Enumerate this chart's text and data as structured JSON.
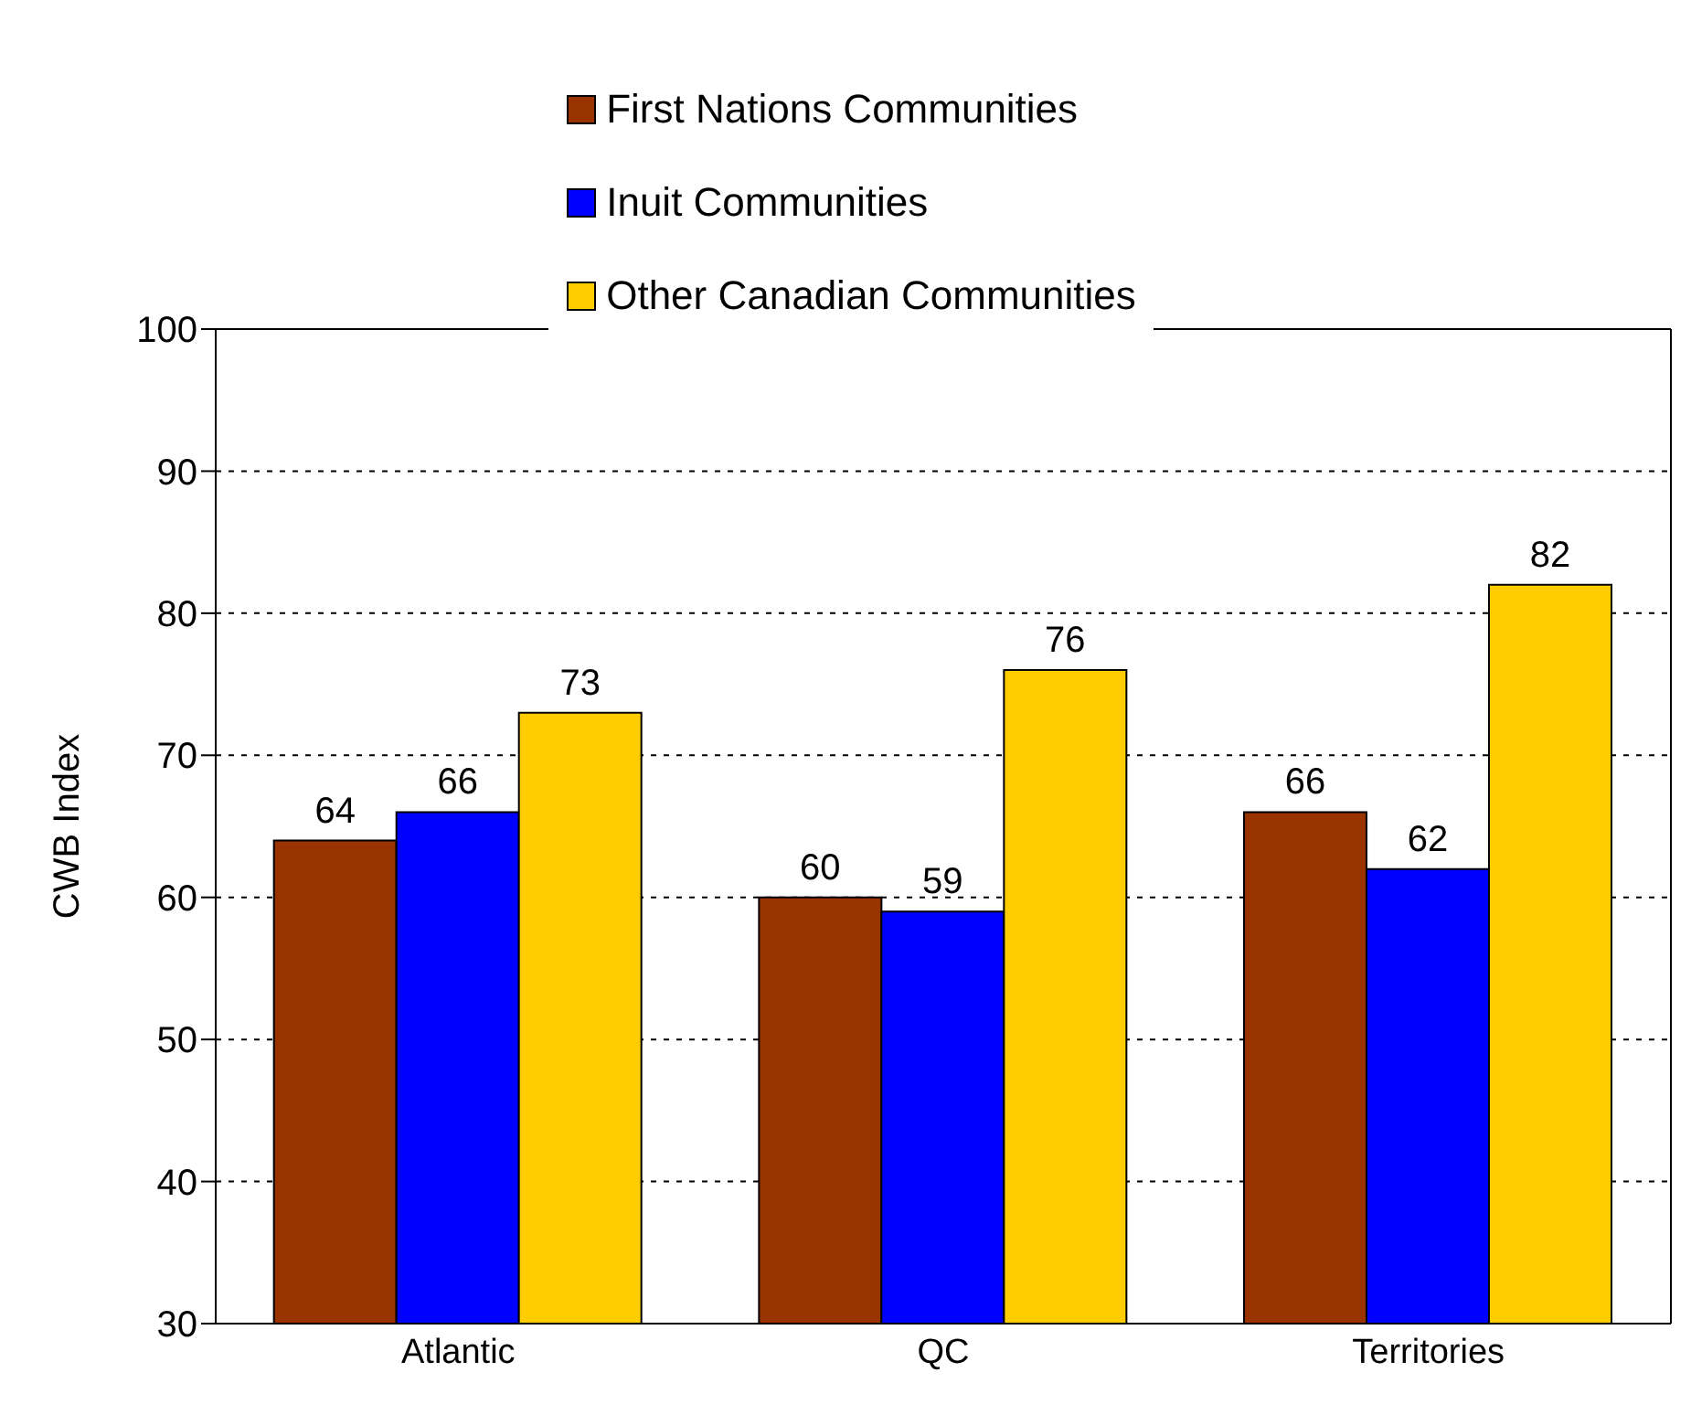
{
  "chart_data": {
    "type": "bar",
    "ylabel": "CWB Index",
    "categories": [
      "Atlantic",
      "QC",
      "Territories"
    ],
    "series": [
      {
        "name": "First Nations Communities",
        "color": "#993300",
        "values": [
          64,
          60,
          66
        ]
      },
      {
        "name": "Inuit Communities",
        "color": "#0000ff",
        "values": [
          66,
          59,
          62
        ]
      },
      {
        "name": "Other Canadian Communities",
        "color": "#ffcc00",
        "values": [
          73,
          76,
          82
        ]
      }
    ],
    "ylim": [
      30,
      100
    ],
    "yticks": [
      30,
      40,
      50,
      60,
      70,
      80,
      90,
      100
    ],
    "grid": "y",
    "legend": "top",
    "data_labels": true
  }
}
